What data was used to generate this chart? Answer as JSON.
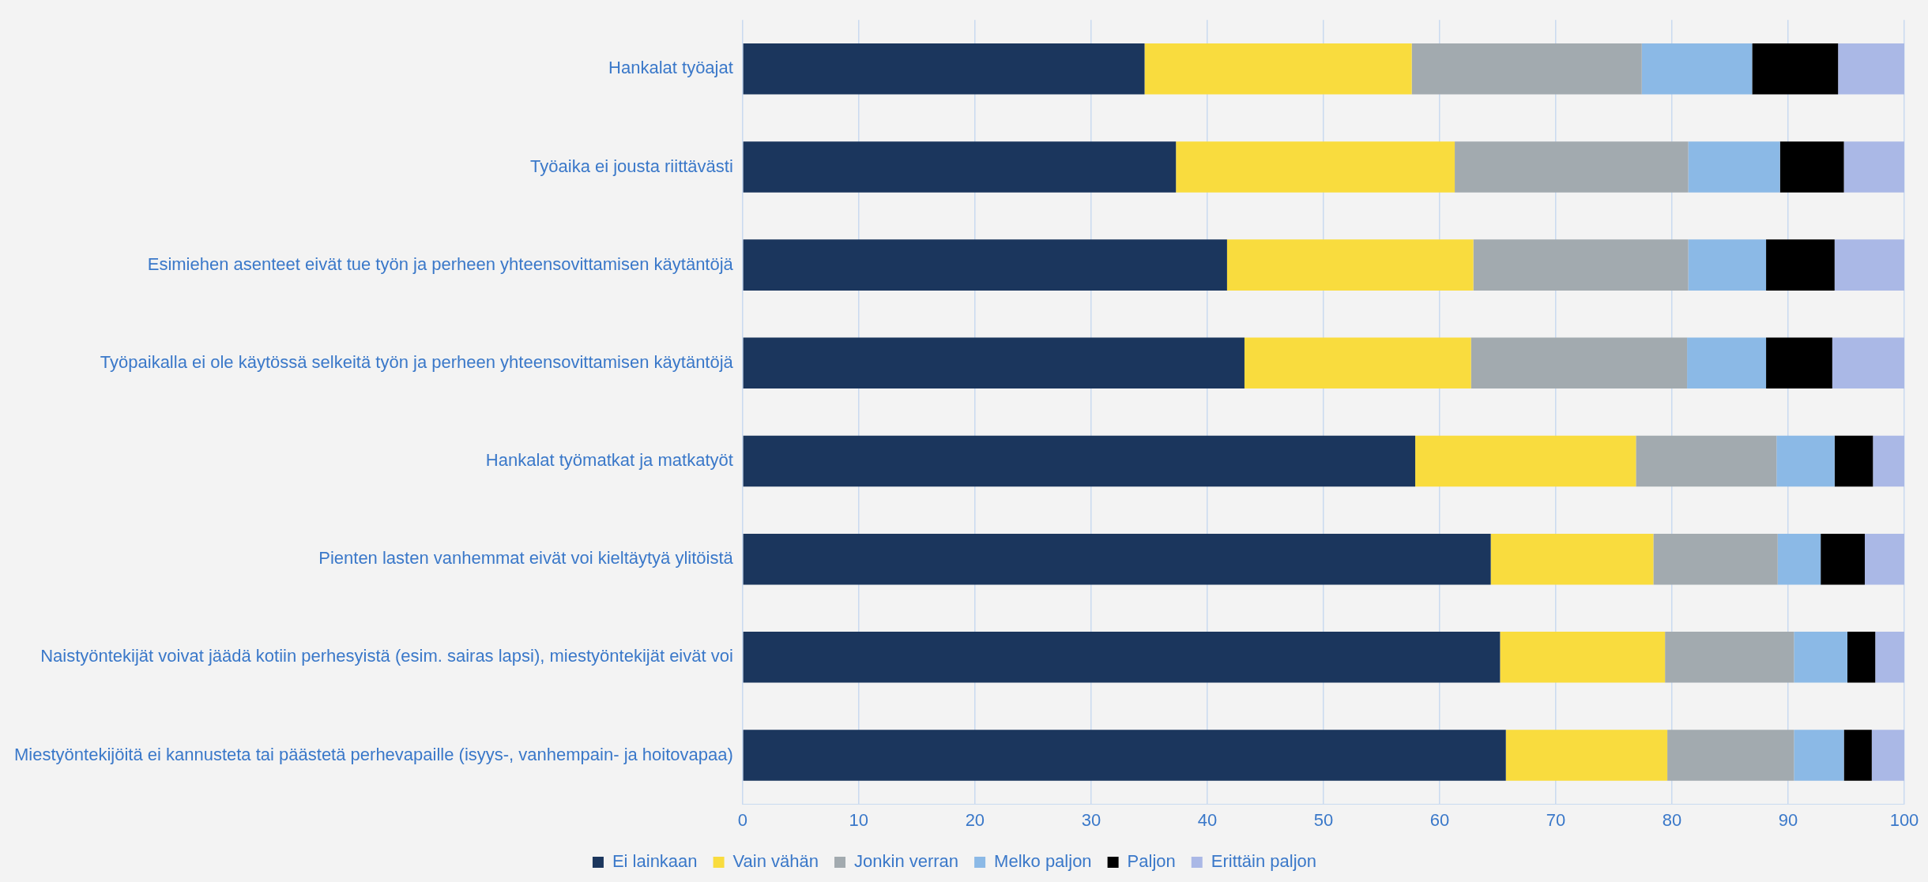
{
  "chart_data": {
    "type": "bar",
    "orientation": "horizontal",
    "stacked": true,
    "categories": [
      "Hankalat työajat",
      "Työaika ei jousta riittävästi",
      "Esimiehen asenteet eivät tue työn ja perheen yhteensovittamisen käytäntöjä",
      "Työpaikalla ei ole käytössä selkeitä työn ja perheen yhteensovittamisen käytäntöjä",
      "Hankalat työmatkat ja matkatyöt",
      "Pienten lasten vanhemmat eivät voi kieltäytyä ylitöistä",
      "Naistyöntekijät voivat jäädä kotiin perhesyistä (esim. sairas lapsi), miestyöntekijät eivät voi",
      "Miestyöntekijöitä ei kannusteta tai päästetä perhevapaille (isyys-, vanhempain- ja hoitovapaa)"
    ],
    "series": [
      {
        "name": "Ei lainkaan",
        "color": "#1b365d",
        "values": [
          34.6,
          37.3,
          41.7,
          43.2,
          57.9,
          64.4,
          65.2,
          65.7
        ]
      },
      {
        "name": "Vain vähän",
        "color": "#f9dc3e",
        "values": [
          23.0,
          24.0,
          21.2,
          19.5,
          19.0,
          14.0,
          14.2,
          13.9
        ]
      },
      {
        "name": "Jonkin verran",
        "color": "#a2aaaf",
        "values": [
          19.8,
          20.1,
          18.5,
          18.6,
          12.1,
          10.7,
          11.1,
          10.9
        ]
      },
      {
        "name": "Melko paljon",
        "color": "#8bb9e6",
        "values": [
          9.5,
          7.9,
          6.7,
          6.8,
          5.0,
          3.7,
          4.6,
          4.3
        ]
      },
      {
        "name": "Paljon",
        "color": "#000000",
        "values": [
          7.4,
          5.5,
          5.9,
          5.7,
          3.3,
          3.8,
          2.4,
          2.4
        ]
      },
      {
        "name": "Erittäin paljon",
        "color": "#aab8e6",
        "values": [
          5.7,
          5.2,
          6.0,
          6.2,
          2.7,
          3.4,
          2.5,
          2.8
        ]
      }
    ],
    "xlim": [
      0,
      100
    ],
    "xticks": [
      0,
      10,
      20,
      30,
      40,
      50,
      60,
      70,
      80,
      90,
      100
    ],
    "grid": "x",
    "legend": "bottom"
  }
}
